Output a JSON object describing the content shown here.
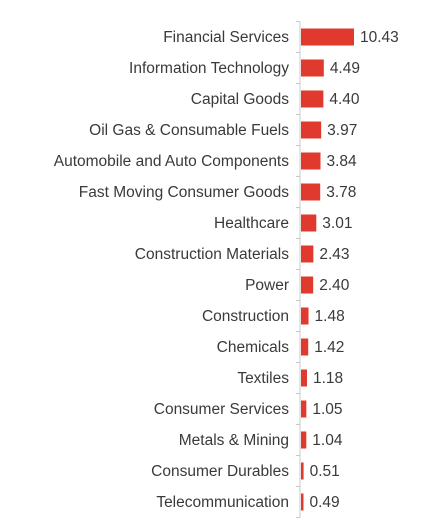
{
  "chart_data": {
    "type": "bar",
    "orientation": "horizontal",
    "categories": [
      "Financial Services",
      "Information Technology",
      "Capital Goods",
      "Oil Gas & Consumable Fuels",
      "Automobile and Auto Components",
      "Fast Moving Consumer Goods",
      "Healthcare",
      "Construction Materials",
      "Power",
      "Construction",
      "Chemicals",
      "Textiles",
      "Consumer Services",
      "Metals & Mining",
      "Consumer Durables",
      "Telecommunication"
    ],
    "values": [
      10.43,
      4.49,
      4.4,
      3.97,
      3.84,
      3.78,
      3.01,
      2.43,
      2.4,
      1.48,
      1.42,
      1.18,
      1.05,
      1.04,
      0.51,
      0.49
    ],
    "value_labels": [
      "10.43",
      "4.49",
      "4.40",
      "3.97",
      "3.84",
      "3.78",
      "3.01",
      "2.43",
      "2.40",
      "1.48",
      "1.42",
      "1.18",
      "1.05",
      "1.04",
      "0.51",
      "0.49"
    ],
    "title": "",
    "xlabel": "",
    "ylabel": "",
    "xlim": [
      0,
      10.43
    ],
    "grid": false,
    "legend": "none",
    "colors": {
      "bar": "#e03a2e",
      "axis": "#c8c8c8",
      "text": "#3a3a3a"
    }
  }
}
